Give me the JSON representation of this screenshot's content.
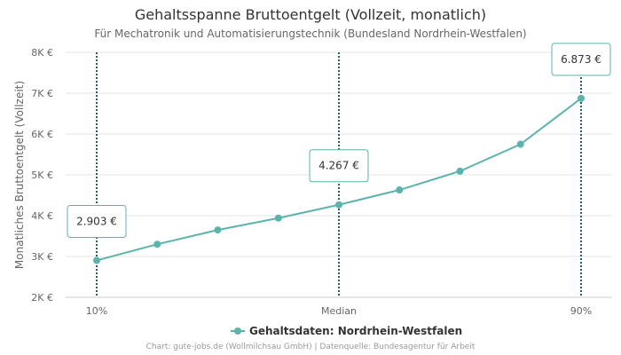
{
  "chart_data": {
    "type": "line",
    "title": "Gehaltsspanne Bruttoentgelt (Vollzeit, monatlich)",
    "subtitle": "Für Mechatronik und Automatisierungstechnik (Bundesland Nordrhein-Westfalen)",
    "ylabel": "Monatliches Bruttoentgelt (Vollzeit)",
    "xlabel": "",
    "ylim": [
      2000,
      8000
    ],
    "yticks": [
      {
        "value": 2000,
        "label": "2K €"
      },
      {
        "value": 3000,
        "label": "3K €"
      },
      {
        "value": 4000,
        "label": "4K €"
      },
      {
        "value": 5000,
        "label": "5K €"
      },
      {
        "value": 6000,
        "label": "6K €"
      },
      {
        "value": 7000,
        "label": "7K €"
      },
      {
        "value": 8000,
        "label": "8K €"
      }
    ],
    "x": [
      10,
      20,
      30,
      40,
      50,
      60,
      70,
      80,
      90
    ],
    "xlim": [
      10,
      90
    ],
    "xticks": [
      {
        "value": 10,
        "label": "10%"
      },
      {
        "value": 50,
        "label": "Median"
      },
      {
        "value": 90,
        "label": "90%"
      }
    ],
    "series": [
      {
        "name": "Gehaltsdaten: Nordrhein-Westfalen",
        "color": "#5ab4ac",
        "values": [
          2903,
          3300,
          3650,
          3940,
          4267,
          4630,
          5090,
          5750,
          6873
        ]
      }
    ],
    "annotations": [
      {
        "x": 10,
        "y": 2903,
        "label": "2.903 €",
        "placement": "above"
      },
      {
        "x": 50,
        "y": 4267,
        "label": "4.267 €",
        "placement": "above"
      },
      {
        "x": 90,
        "y": 6873,
        "label": "6.873 €",
        "placement": "above"
      }
    ],
    "legend": "bottom-center",
    "grid": true
  },
  "credits": "Chart: gute-jobs.de (Wollmilchsau GmbH) | Datenquelle: Bundesagentur für Arbeit"
}
